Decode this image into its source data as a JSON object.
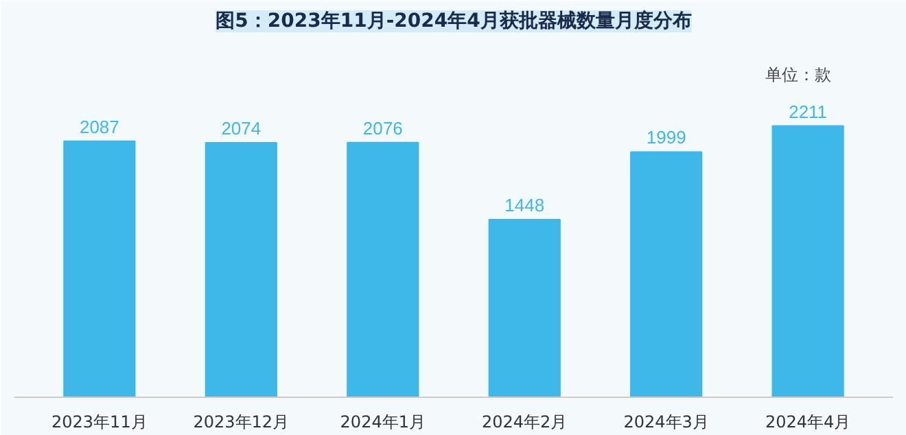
{
  "chart_data": {
    "type": "bar",
    "title": "图5：2023年11月-2024年4月获批器械数量月度分布",
    "annotations": [
      "单位：款"
    ],
    "categories": [
      "2023年11月",
      "2023年12月",
      "2024年1月",
      "2024年2月",
      "2024年3月",
      "2024年4月"
    ],
    "values": [
      2087,
      2074,
      2076,
      1448,
      1999,
      2211
    ],
    "color": "#3db8e8",
    "data_labels": true,
    "grid": false
  }
}
